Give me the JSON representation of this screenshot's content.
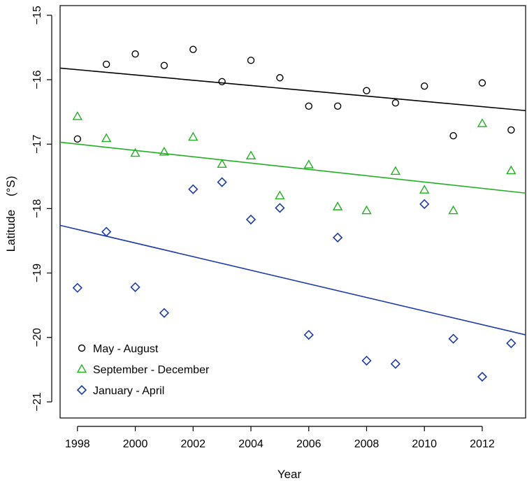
{
  "chart_data": {
    "type": "scatter",
    "title": "",
    "xlabel": "Year",
    "ylabel": "Latitude    (°S)",
    "xlim": [
      1997.4,
      2013.5
    ],
    "ylim": [
      -21.25,
      -14.85
    ],
    "xticks": [
      1998,
      2000,
      2002,
      2004,
      2006,
      2008,
      2010,
      2012
    ],
    "xtick_labels": [
      "1998",
      "2000",
      "2002",
      "2004",
      "2006",
      "2008",
      "2010",
      "2012"
    ],
    "yticks": [
      -15,
      -16,
      -17,
      -18,
      -19,
      -20,
      -21
    ],
    "ytick_labels": [
      "−15",
      "−16",
      "−17",
      "−18",
      "−19",
      "−20",
      "−21"
    ],
    "grid": false,
    "legend_position": "bottom-left",
    "series": [
      {
        "name": "May - August",
        "marker": "circle",
        "color": "#000000",
        "x": [
          1998,
          1999,
          2000,
          2001,
          2002,
          2003,
          2004,
          2005,
          2006,
          2007,
          2008,
          2009,
          2010,
          2011,
          2012,
          2013
        ],
        "y": [
          -16.92,
          -15.76,
          -15.6,
          -15.78,
          -15.53,
          -16.03,
          -15.7,
          -15.97,
          -16.41,
          -16.41,
          -16.17,
          -16.36,
          -16.1,
          -16.87,
          -16.05,
          -16.78
        ],
        "trend": [
          [
            1997.4,
            -15.82
          ],
          [
            2013.5,
            -16.48
          ]
        ]
      },
      {
        "name": "September - December",
        "marker": "triangle",
        "color": "#22b022",
        "x": [
          1998,
          1999,
          2000,
          2001,
          2002,
          2003,
          2004,
          2005,
          2006,
          2007,
          2008,
          2009,
          2010,
          2011,
          2012,
          2013
        ],
        "y": [
          -16.57,
          -16.91,
          -17.14,
          -17.12,
          -16.89,
          -17.31,
          -17.18,
          -17.8,
          -17.32,
          -17.97,
          -18.03,
          -17.42,
          -17.71,
          -18.03,
          -16.68,
          -17.41
        ],
        "trend": [
          [
            1997.4,
            -16.97
          ],
          [
            2013.5,
            -17.76
          ]
        ]
      },
      {
        "name": "January - April",
        "marker": "diamond",
        "color": "#1f3da8",
        "x": [
          1998,
          1999,
          2000,
          2001,
          2002,
          2003,
          2004,
          2005,
          2006,
          2007,
          2008,
          2009,
          2010,
          2011,
          2012,
          2013
        ],
        "y": [
          -19.23,
          -18.36,
          -19.22,
          -19.62,
          -17.7,
          -17.59,
          -18.17,
          -17.99,
          -19.96,
          -18.45,
          -20.36,
          -20.41,
          -17.93,
          -20.02,
          -20.61,
          -20.09
        ],
        "trend": [
          [
            1997.4,
            -18.26
          ],
          [
            2013.5,
            -19.96
          ]
        ]
      }
    ]
  }
}
